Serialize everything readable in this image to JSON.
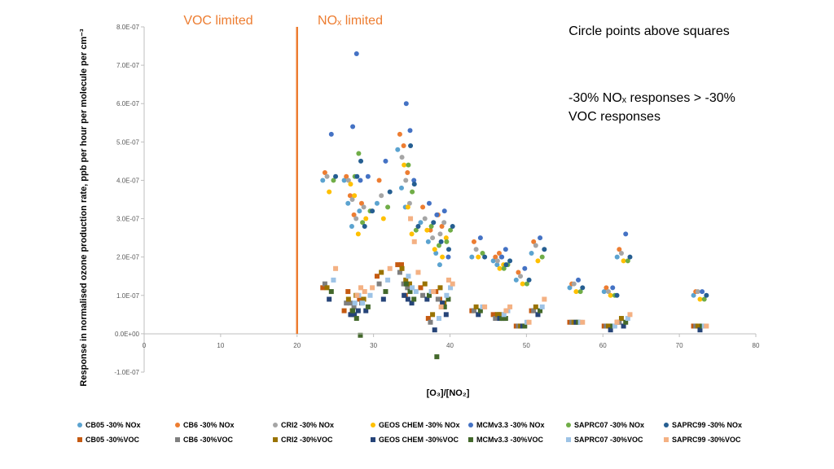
{
  "chart_data": {
    "type": "scatter",
    "xlabel": "[O₃]/[NO₂]",
    "ylabel": "Response in normalised ozone production rate, ppb per hour per molecule per cm⁻³",
    "xlim": [
      0,
      80
    ],
    "ylim": [
      -1e-07,
      8e-07
    ],
    "x_ticks": [
      {
        "value": 0,
        "label": "0"
      },
      {
        "value": 10,
        "label": "10"
      },
      {
        "value": 20,
        "label": "20"
      },
      {
        "value": 30,
        "label": "30"
      },
      {
        "value": 40,
        "label": "40"
      },
      {
        "value": 50,
        "label": "50"
      },
      {
        "value": 60,
        "label": "60"
      },
      {
        "value": 70,
        "label": "70"
      },
      {
        "value": 80,
        "label": "80"
      }
    ],
    "y_ticks": [
      {
        "value": -1e-07,
        "label": "-1.0E-07"
      },
      {
        "value": 0,
        "label": "0.0E+00"
      },
      {
        "value": 1e-07,
        "label": "1.0E-07"
      },
      {
        "value": 2e-07,
        "label": "2.0E-07"
      },
      {
        "value": 3e-07,
        "label": "3.0E-07"
      },
      {
        "value": 4e-07,
        "label": "4.0E-07"
      },
      {
        "value": 5e-07,
        "label": "5.0E-07"
      },
      {
        "value": 6e-07,
        "label": "6.0E-07"
      },
      {
        "value": 7e-07,
        "label": "7.0E-07"
      },
      {
        "value": 8e-07,
        "label": "8.0E-07"
      }
    ],
    "grid": false,
    "legend_position": "bottom",
    "reference_line": {
      "x": 20,
      "color": "#ED7D31"
    },
    "annotations": {
      "voc_limited": "VOC limited",
      "nox_limited": "NOₓ limited",
      "note1": "Circle points above squares",
      "note2_line1": "-30% NOₓ responses > -30%",
      "note2_line2": "VOC responses"
    },
    "x_groups": [
      24.2,
      27.0,
      27.5,
      28.0,
      29.0,
      31.3,
      34.0,
      34.5,
      35.0,
      37.0,
      38.0,
      39.0,
      39.5,
      43.7,
      46.5,
      47.0,
      49.5,
      51.5,
      56.5,
      61.0,
      62.7,
      72.7
    ],
    "series": [
      {
        "name": "CB05 -30% NOx",
        "marker": "circle",
        "color": "#5BA3D0",
        "values": [
          4e-07,
          4e-07,
          3.4e-07,
          2.8e-07,
          3.2e-07,
          3.4e-07,
          4.8e-07,
          3.8e-07,
          3.3e-07,
          2.9e-07,
          2.4e-07,
          2.1e-07,
          1.8e-07,
          2e-07,
          1.9e-07,
          1.8e-07,
          1.4e-07,
          2.1e-07,
          1.2e-07,
          1.1e-07,
          2e-07,
          1e-07
        ]
      },
      {
        "name": "CB6 -30% NOx",
        "marker": "circle",
        "color": "#ED7D31",
        "values": [
          4.2e-07,
          4.1e-07,
          3.6e-07,
          3.1e-07,
          3.4e-07,
          4e-07,
          5.2e-07,
          4.9e-07,
          4.2e-07,
          3.3e-07,
          2.7e-07,
          3.1e-07,
          2.8e-07,
          2.4e-07,
          2e-07,
          2.1e-07,
          1.6e-07,
          2.4e-07,
          1.3e-07,
          1.2e-07,
          2.2e-07,
          1.1e-07
        ]
      },
      {
        "name": "CRI2 -30% NOx",
        "marker": "circle",
        "color": "#A5A5A5",
        "values": [
          4.1e-07,
          4e-07,
          3.5e-07,
          3e-07,
          3.3e-07,
          3.6e-07,
          4.6e-07,
          4e-07,
          3.4e-07,
          3e-07,
          2.5e-07,
          2.6e-07,
          2.9e-07,
          2.2e-07,
          1.9e-07,
          2e-07,
          1.5e-07,
          2.3e-07,
          1.3e-07,
          1.1e-07,
          2.1e-07,
          1.1e-07
        ]
      },
      {
        "name": "GEOS CHEM -30% NOx",
        "marker": "circle",
        "color": "#FFC000",
        "values": [
          3.7e-07,
          3.9e-07,
          3.6e-07,
          2.6e-07,
          3e-07,
          3e-07,
          4.4e-07,
          3.3e-07,
          2.6e-07,
          2.7e-07,
          2.2e-07,
          2e-07,
          2.5e-07,
          2e-07,
          1.7e-07,
          1.8e-07,
          1.3e-07,
          1.9e-07,
          1.1e-07,
          1e-07,
          1.9e-07,
          9e-08
        ]
      },
      {
        "name": "MCMv3.3 -30% NOx",
        "marker": "circle",
        "color": "#4472C4",
        "values": [
          5.2e-07,
          5.4e-07,
          7.3e-07,
          4e-07,
          4.1e-07,
          4.5e-07,
          6e-07,
          5.3e-07,
          4e-07,
          3.4e-07,
          3.1e-07,
          3.2e-07,
          2e-07,
          2.5e-07,
          2e-07,
          2.2e-07,
          1.7e-07,
          2.5e-07,
          1.4e-07,
          1.2e-07,
          2.6e-07,
          1.1e-07
        ]
      },
      {
        "name": "SAPRC07 -30% NOx",
        "marker": "circle",
        "color": "#70AD47",
        "values": [
          4e-07,
          4.1e-07,
          4.7e-07,
          2.9e-07,
          3.2e-07,
          3.3e-07,
          4.4e-07,
          3.7e-07,
          2.7e-07,
          2.8e-07,
          2.3e-07,
          2.4e-07,
          2.7e-07,
          2.1e-07,
          1.7e-07,
          1.8e-07,
          1.3e-07,
          2e-07,
          1.1e-07,
          1e-07,
          1.9e-07,
          9e-08
        ]
      },
      {
        "name": "SAPRC99 -30% NOx",
        "marker": "circle",
        "color": "#255E91",
        "values": [
          4.1e-07,
          4.1e-07,
          4.5e-07,
          2.8e-07,
          3.2e-07,
          3.7e-07,
          4.9e-07,
          3.9e-07,
          2.8e-07,
          2.9e-07,
          2.4e-07,
          2.2e-07,
          2.8e-07,
          2e-07,
          1.8e-07,
          1.9e-07,
          1.4e-07,
          2.2e-07,
          1.2e-07,
          1e-07,
          2e-07,
          1e-07
        ]
      },
      {
        "name": "CB05 -30%VOC",
        "marker": "square",
        "color": "#C55A11",
        "values": [
          1.2e-07,
          6e-08,
          1.1e-07,
          5e-08,
          9e-08,
          1.5e-07,
          1.8e-07,
          1.8e-07,
          1e-07,
          1.2e-07,
          4e-08,
          1.1e-07,
          9e-08,
          6e-08,
          5e-08,
          5e-08,
          2e-08,
          6e-08,
          3e-08,
          2e-08,
          3e-08,
          2e-08
        ]
      },
      {
        "name": "CB6 -30%VOC",
        "marker": "square",
        "color": "#7F7F7F",
        "values": [
          1.3e-07,
          8e-08,
          8e-08,
          7e-08,
          8e-08,
          1.3e-07,
          1.6e-07,
          1.3e-07,
          1.2e-07,
          1e-07,
          3e-08,
          9e-08,
          7e-08,
          6e-08,
          4e-08,
          5e-08,
          2e-08,
          6e-08,
          3e-08,
          2e-08,
          3e-08,
          2e-08
        ]
      },
      {
        "name": "CRI2 -30%VOC",
        "marker": "square",
        "color": "#997300",
        "values": [
          1.2e-07,
          9e-08,
          6e-08,
          1e-07,
          9e-08,
          1.6e-07,
          1.7e-07,
          1.4e-07,
          1.3e-07,
          1.3e-07,
          5e-08,
          1.2e-07,
          8e-08,
          7e-08,
          5e-08,
          5e-08,
          2e-08,
          7e-08,
          3e-08,
          2e-08,
          4e-08,
          2e-08
        ]
      },
      {
        "name": "GEOS CHEM -30%VOC",
        "marker": "square",
        "color": "#264478",
        "values": [
          9e-08,
          5e-08,
          5e-08,
          6e-08,
          6e-08,
          9e-08,
          1e-07,
          9e-08,
          8e-08,
          9e-08,
          1e-08,
          8e-08,
          5e-08,
          5e-08,
          4e-08,
          4e-08,
          2e-08,
          5e-08,
          3e-08,
          1e-08,
          2e-08,
          1e-08
        ]
      },
      {
        "name": "MCMv3.3 -30%VOC",
        "marker": "square",
        "color": "#43682B",
        "values": [
          1.1e-07,
          6e-08,
          4e-08,
          -4e-09,
          7e-08,
          1.1e-07,
          1.3e-07,
          1.1e-07,
          9e-08,
          1e-07,
          -6e-08,
          7e-08,
          9e-08,
          6e-08,
          4e-08,
          4e-08,
          2e-08,
          6e-08,
          3e-08,
          2e-08,
          3e-08,
          2e-08
        ]
      },
      {
        "name": "SAPRC07 -30%VOC",
        "marker": "square",
        "color": "#9DC3E6",
        "values": [
          1.4e-07,
          8e-08,
          1e-07,
          8e-08,
          1e-07,
          1.4e-07,
          1.5e-07,
          1.2e-07,
          1.1e-07,
          1.1e-07,
          4e-08,
          1e-07,
          1.2e-07,
          7e-08,
          5e-08,
          6e-08,
          3e-08,
          7e-08,
          3e-08,
          2e-08,
          4e-08,
          2e-08
        ]
      },
      {
        "name": "SAPRC99 -30%VOC",
        "marker": "square",
        "color": "#F4B183",
        "values": [
          1.7e-07,
          1e-07,
          1.2e-07,
          1.1e-07,
          1.2e-07,
          1.7e-07,
          3e-07,
          2.4e-07,
          1.6e-07,
          1.1e-07,
          7e-08,
          1.4e-07,
          1.3e-07,
          7e-08,
          6e-08,
          7e-08,
          3e-08,
          9e-08,
          3e-08,
          3e-08,
          5e-08,
          2e-08
        ]
      }
    ]
  }
}
